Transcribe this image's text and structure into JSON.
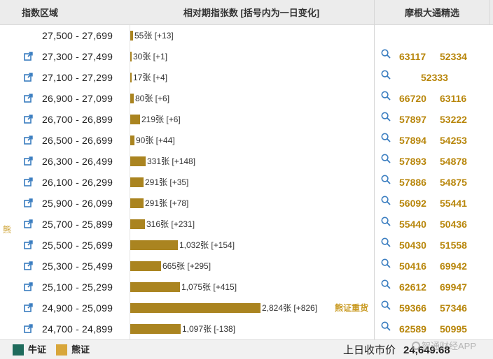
{
  "header": {
    "range_label": "指数区域",
    "chart_label": "相对期指张数 [括号内为一日变化]",
    "issuer_label": "摩根大通精选"
  },
  "side_label": "熊",
  "colors": {
    "bar": "#aa8420",
    "bull": "#1f6b5c",
    "bear": "#d8a63a",
    "accent": "#b8860b"
  },
  "bar_scale_max": 2824,
  "rows": [
    {
      "range": "27,500 - 27,699",
      "count": 55,
      "label": "55张 [+13]",
      "has_link": false,
      "codes": []
    },
    {
      "range": "27,300 - 27,499",
      "count": 30,
      "label": "30张 [+1]",
      "has_link": true,
      "codes": [
        "63117",
        "52334"
      ]
    },
    {
      "range": "27,100 - 27,299",
      "count": 17,
      "label": "17张 [+4]",
      "has_link": true,
      "codes": [
        "52333"
      ]
    },
    {
      "range": "26,900 - 27,099",
      "count": 80,
      "label": "80张 [+6]",
      "has_link": true,
      "codes": [
        "66720",
        "63116"
      ]
    },
    {
      "range": "26,700 - 26,899",
      "count": 219,
      "label": "219张 [+6]",
      "has_link": true,
      "codes": [
        "57897",
        "53222"
      ]
    },
    {
      "range": "26,500 - 26,699",
      "count": 90,
      "label": "90张 [+44]",
      "has_link": true,
      "codes": [
        "57894",
        "54253"
      ]
    },
    {
      "range": "26,300 - 26,499",
      "count": 331,
      "label": "331张 [+148]",
      "has_link": true,
      "codes": [
        "57893",
        "54878"
      ]
    },
    {
      "range": "26,100 - 26,299",
      "count": 291,
      "label": "291张 [+35]",
      "has_link": true,
      "codes": [
        "57886",
        "54875"
      ]
    },
    {
      "range": "25,900 - 26,099",
      "count": 291,
      "label": "291张 [+78]",
      "has_link": true,
      "codes": [
        "56092",
        "55441"
      ]
    },
    {
      "range": "25,700 - 25,899",
      "count": 316,
      "label": "316张 [+231]",
      "has_link": true,
      "codes": [
        "55440",
        "50436"
      ]
    },
    {
      "range": "25,500 - 25,699",
      "count": 1032,
      "label": "1,032张 [+154]",
      "has_link": true,
      "codes": [
        "50430",
        "51558"
      ]
    },
    {
      "range": "25,300 - 25,499",
      "count": 665,
      "label": "665张 [+295]",
      "has_link": true,
      "codes": [
        "50416",
        "69942"
      ]
    },
    {
      "range": "25,100 - 25,299",
      "count": 1075,
      "label": "1,075张 [+415]",
      "has_link": true,
      "codes": [
        "62612",
        "69947"
      ]
    },
    {
      "range": "24,900 - 25,099",
      "count": 2824,
      "label": "2,824张 [+826]",
      "has_link": true,
      "tag": "熊证重货",
      "codes": [
        "59366",
        "57346"
      ]
    },
    {
      "range": "24,700 - 24,899",
      "count": 1097,
      "label": "1,097张 [-138]",
      "has_link": true,
      "codes": [
        "62589",
        "50995"
      ]
    }
  ],
  "footer": {
    "bull_label": "牛证",
    "bear_label": "熊证",
    "close_label": "上日收市价",
    "close_value": "24,649.68",
    "watermark": "智通财经APP"
  }
}
